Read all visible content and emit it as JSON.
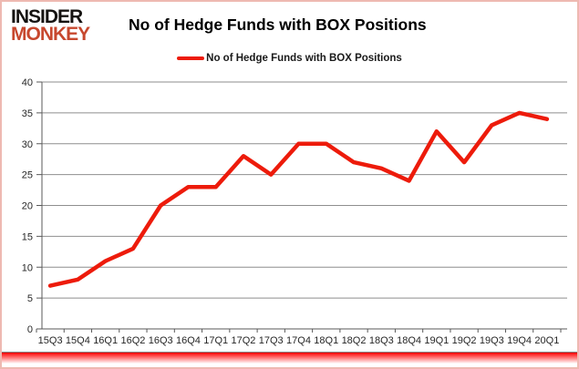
{
  "header": {
    "logo_line1": "INSIDER",
    "logo_line2": "MONKEY",
    "title": "No of Hedge Funds with BOX Positions"
  },
  "legend": {
    "label": "No of Hedge Funds with BOX Positions"
  },
  "chart_data": {
    "type": "line",
    "title": "No of Hedge Funds with BOX Positions",
    "categories": [
      "15Q3",
      "15Q4",
      "16Q1",
      "16Q2",
      "16Q3",
      "16Q4",
      "17Q1",
      "17Q2",
      "17Q3",
      "17Q4",
      "18Q1",
      "18Q2",
      "18Q3",
      "18Q4",
      "19Q1",
      "19Q2",
      "19Q3",
      "19Q4",
      "20Q1"
    ],
    "values": [
      7,
      8,
      11,
      13,
      20,
      23,
      23,
      28,
      25,
      30,
      30,
      27,
      26,
      24,
      32,
      27,
      33,
      35,
      34
    ],
    "series_name": "No of Hedge Funds with BOX Positions",
    "xlabel": "",
    "ylabel": "",
    "ylim": [
      0,
      40
    ],
    "yticks": [
      0,
      5,
      10,
      15,
      20,
      25,
      30,
      35,
      40
    ],
    "grid": true,
    "legend_position": "top-center"
  },
  "colors": {
    "line_red": "#ed1b0b",
    "logo_red": "#c7482e",
    "grid_gray": "#8e8e8e",
    "axis_gray": "#595959",
    "tick_text": "#262626",
    "border_pink": "#eeb9b1",
    "bottom_bar_red": "#ff0000"
  }
}
